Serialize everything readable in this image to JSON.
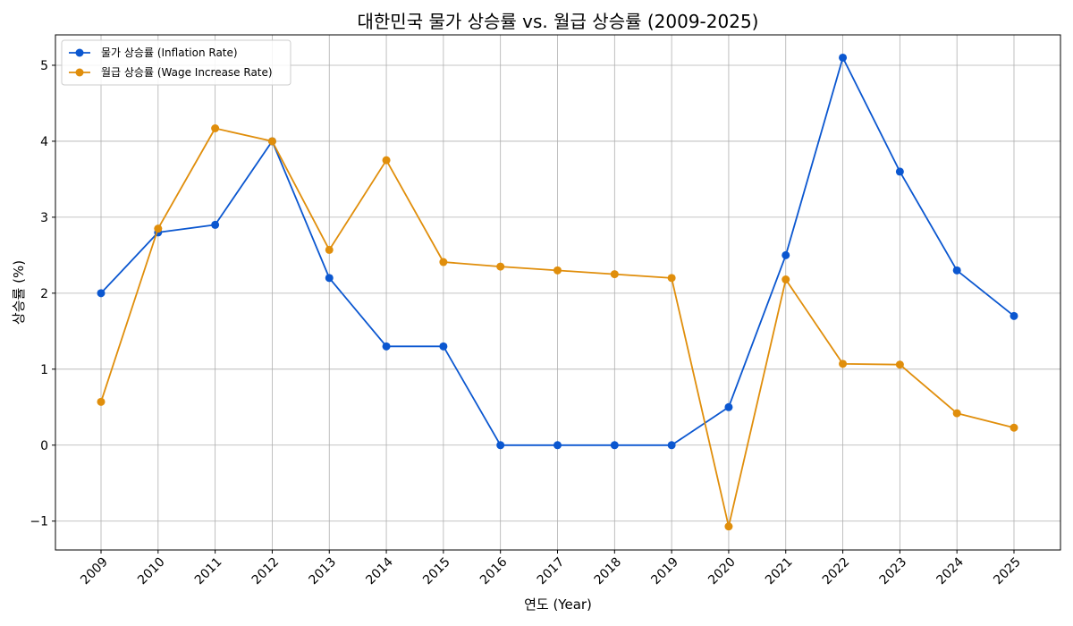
{
  "chart_data": {
    "type": "line",
    "title": "대한민국 물가 상승률 vs. 월급 상승률 (2009-2025)",
    "xlabel": "연도 (Year)",
    "ylabel": "상승률 (%)",
    "categories": [
      "2009",
      "2010",
      "2011",
      "2012",
      "2013",
      "2014",
      "2015",
      "2016",
      "2017",
      "2018",
      "2019",
      "2020",
      "2021",
      "2022",
      "2023",
      "2024",
      "2025"
    ],
    "series": [
      {
        "name": "물가 상승률 (Inflation Rate)",
        "color": "#0b57d0",
        "values": [
          2.0,
          2.8,
          2.9,
          4.0,
          2.2,
          1.3,
          1.3,
          0.0,
          0.0,
          0.0,
          0.0,
          0.5,
          2.5,
          5.1,
          3.6,
          2.3,
          1.7
        ]
      },
      {
        "name": "월급 상승률 (Wage Increase Rate)",
        "color": "#e08e0b",
        "values": [
          0.57,
          2.85,
          4.17,
          4.0,
          2.57,
          3.75,
          2.41,
          2.35,
          2.3,
          2.25,
          2.2,
          -1.07,
          2.18,
          1.07,
          1.06,
          0.42,
          0.23
        ]
      }
    ],
    "ylim": [
      -1.38,
      5.4
    ],
    "yticks": [
      -1,
      0,
      1,
      2,
      3,
      4,
      5
    ],
    "ytick_labels": [
      "−1",
      "0",
      "1",
      "2",
      "3",
      "4",
      "5"
    ],
    "grid": true,
    "legend_position": "top-left"
  }
}
